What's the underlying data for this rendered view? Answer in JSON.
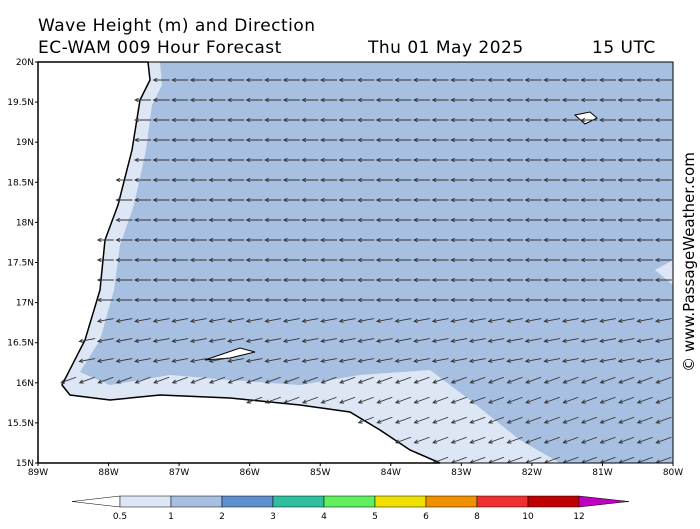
{
  "header": {
    "title": "Wave Height (m) and Direction",
    "model": "EC-WAM 009 Hour Forecast",
    "date": "Thu 01 May 2025",
    "time": "15 UTC"
  },
  "map": {
    "lat_labels": [
      "20N",
      "19.5N",
      "19N",
      "18.5N",
      "18N",
      "17.5N",
      "17N",
      "16.5N",
      "16N",
      "15.5N",
      "15N"
    ],
    "lon_labels": [
      "89W",
      "88W",
      "87W",
      "86W",
      "85W",
      "84W",
      "83W",
      "82W",
      "81W",
      "80W"
    ]
  },
  "legend": {
    "labels": [
      "0.5",
      "1",
      "2",
      "3",
      "4",
      "5",
      "6",
      "8",
      "10",
      "12"
    ],
    "colors": [
      "#ffffff",
      "#dce6f4",
      "#a7bfe0",
      "#5f8fcf",
      "#2fbf9f",
      "#5fef5f",
      "#f0e000",
      "#f09000",
      "#f03030",
      "#c00000",
      "#c000c0"
    ]
  },
  "credit": "© www.PassageWeather.com"
}
